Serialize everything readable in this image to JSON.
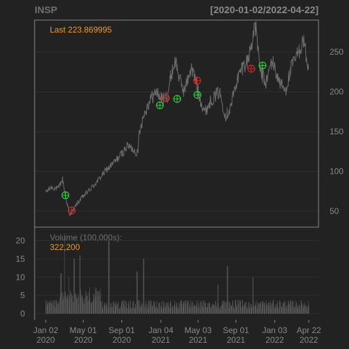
{
  "chart_data": {
    "type": "line",
    "title": "INSP",
    "range_label": "[2020-01-02/2022-04-22]",
    "last_label": "Last 223.869995",
    "volume_label": "Volume (100,000s):",
    "volume_last": "322,200",
    "colors": {
      "background": "#222222",
      "frame": "#888888",
      "grid": "#2e2e2e",
      "price": "#6e6e6e",
      "volume": "#5a5a5a",
      "title": "#707070",
      "accent": "#f39c12",
      "tick": "#8a8a8a",
      "buy": "#2ecc40",
      "sell": "#d62728"
    },
    "price": {
      "ylim": [
        30,
        290
      ],
      "yticks": [
        50,
        100,
        150,
        200,
        250
      ],
      "anchors": [
        [
          "2020-01-02",
          74
        ],
        [
          "2020-01-20",
          80
        ],
        [
          "2020-02-10",
          78
        ],
        [
          "2020-02-25",
          90
        ],
        [
          "2020-03-05",
          70
        ],
        [
          "2020-03-18",
          45
        ],
        [
          "2020-03-27",
          50
        ],
        [
          "2020-04-15",
          62
        ],
        [
          "2020-05-10",
          72
        ],
        [
          "2020-06-10",
          85
        ],
        [
          "2020-07-10",
          100
        ],
        [
          "2020-08-10",
          112
        ],
        [
          "2020-09-01",
          122
        ],
        [
          "2020-09-20",
          132
        ],
        [
          "2020-10-10",
          127
        ],
        [
          "2020-10-23",
          122
        ],
        [
          "2020-10-26",
          148
        ],
        [
          "2020-11-10",
          170
        ],
        [
          "2020-12-01",
          190
        ],
        [
          "2020-12-20",
          200
        ],
        [
          "2021-01-10",
          190
        ],
        [
          "2021-01-25",
          195
        ],
        [
          "2021-02-05",
          220
        ],
        [
          "2021-02-20",
          240
        ],
        [
          "2021-03-05",
          215
        ],
        [
          "2021-03-20",
          200
        ],
        [
          "2021-04-10",
          230
        ],
        [
          "2021-04-25",
          215
        ],
        [
          "2021-05-10",
          190
        ],
        [
          "2021-05-25",
          175
        ],
        [
          "2021-06-15",
          190
        ],
        [
          "2021-07-10",
          200
        ],
        [
          "2021-07-30",
          170
        ],
        [
          "2021-08-15",
          180
        ],
        [
          "2021-09-01",
          210
        ],
        [
          "2021-09-20",
          230
        ],
        [
          "2021-10-10",
          240
        ],
        [
          "2021-10-25",
          270
        ],
        [
          "2021-11-05",
          280
        ],
        [
          "2021-11-15",
          230
        ],
        [
          "2021-12-05",
          210
        ],
        [
          "2021-12-25",
          240
        ],
        [
          "2022-01-15",
          215
        ],
        [
          "2022-02-05",
          200
        ],
        [
          "2022-02-25",
          230
        ],
        [
          "2022-03-15",
          245
        ],
        [
          "2022-04-05",
          265
        ],
        [
          "2022-04-22",
          224
        ]
      ],
      "buy_signals": [
        [
          "2020-03-05",
          70
        ],
        [
          "2021-01-01",
          183
        ],
        [
          "2021-02-25",
          191
        ],
        [
          "2021-05-01",
          196
        ],
        [
          "2021-11-25",
          233
        ]
      ],
      "sell_signals": [
        [
          "2020-03-25",
          51
        ],
        [
          "2021-01-20",
          192
        ],
        [
          "2021-04-30",
          214
        ],
        [
          "2021-10-20",
          229
        ]
      ]
    },
    "volume": {
      "ylim": [
        0,
        22
      ],
      "yticks": [
        0,
        5,
        10,
        15,
        20
      ],
      "spikes": [
        [
          "2020-03-01",
          22
        ],
        [
          "2020-03-15",
          10
        ],
        [
          "2020-04-02",
          15
        ],
        [
          "2020-04-20",
          16
        ],
        [
          "2020-02-20",
          11
        ],
        [
          "2020-07-22",
          20
        ],
        [
          "2020-10-20",
          11.5
        ],
        [
          "2020-11-10",
          15
        ],
        [
          "2021-08-05",
          13
        ],
        [
          "2021-10-25",
          10
        ],
        [
          "2021-07-05",
          8
        ]
      ]
    },
    "x": {
      "start": "2020-01-02",
      "end": "2022-04-22",
      "ticks": [
        {
          "date": "2020-01-02",
          "line1": "Jan 02",
          "line2": "2020"
        },
        {
          "date": "2020-05-01",
          "line1": "May 01",
          "line2": "2020"
        },
        {
          "date": "2020-09-01",
          "line1": "Sep 01",
          "line2": "2020"
        },
        {
          "date": "2021-01-04",
          "line1": "Jan 04",
          "line2": "2021"
        },
        {
          "date": "2021-05-03",
          "line1": "May 03",
          "line2": "2021"
        },
        {
          "date": "2021-09-01",
          "line1": "Sep 01",
          "line2": "2021"
        },
        {
          "date": "2022-01-03",
          "line1": "Jan 03",
          "line2": "2022"
        },
        {
          "date": "2022-04-22",
          "line1": "Apr 22",
          "line2": "2022"
        }
      ]
    }
  }
}
